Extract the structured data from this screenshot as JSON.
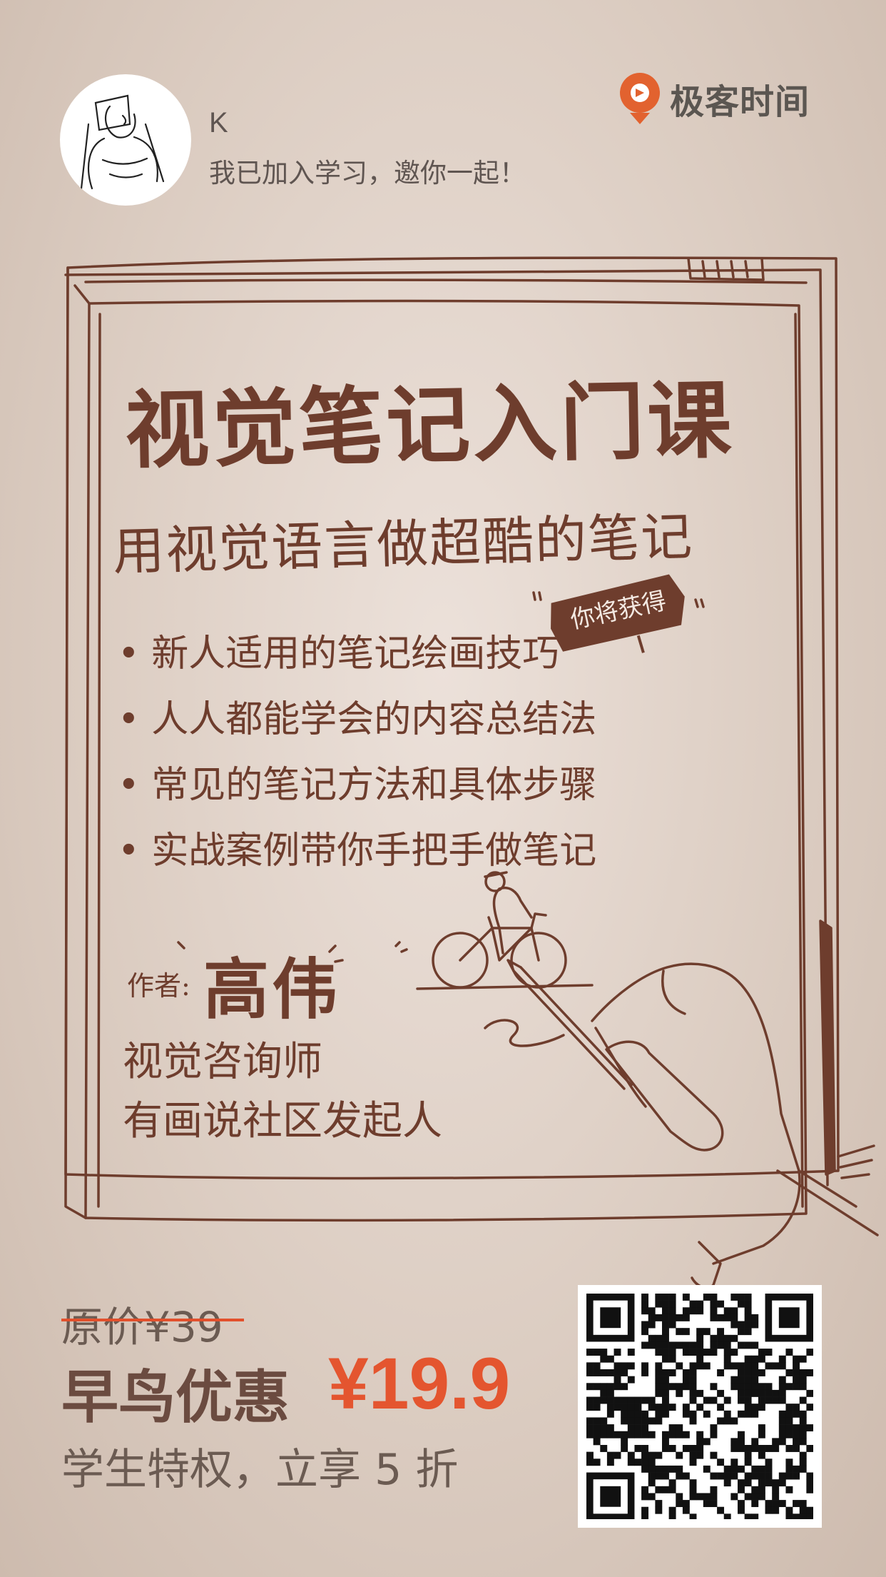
{
  "user": {
    "name": "K",
    "invite_text": "我已加入学习，邀你一起！"
  },
  "brand": {
    "name": "极客时间",
    "logo_icon": "geek-time-logo-icon",
    "accent": "#e2622f"
  },
  "course": {
    "title": "视觉笔记入门课",
    "subtitle": "用视觉语言做超酷的笔记",
    "badge": "你将获得",
    "benefits": [
      "新人适用的笔记绘画技巧",
      "人人都能学会的内容总结法",
      "常见的笔记方法和具体步骤",
      "实战案例带你手把手做笔记"
    ]
  },
  "author": {
    "label": "作者:",
    "name": "高伟",
    "role": "视觉咨询师",
    "org": "有画说社区发起人"
  },
  "pricing": {
    "original": "原价¥39",
    "early_label": "早鸟优惠",
    "early_price": "¥19.9",
    "student_note": "学生特权，立享 5 折"
  },
  "colors": {
    "ink": "#6e3d2d",
    "price": "#e4552f",
    "background": "#dccdc2"
  },
  "icons": {
    "avatar": "user-avatar-sketch",
    "qr": "qr-code"
  }
}
